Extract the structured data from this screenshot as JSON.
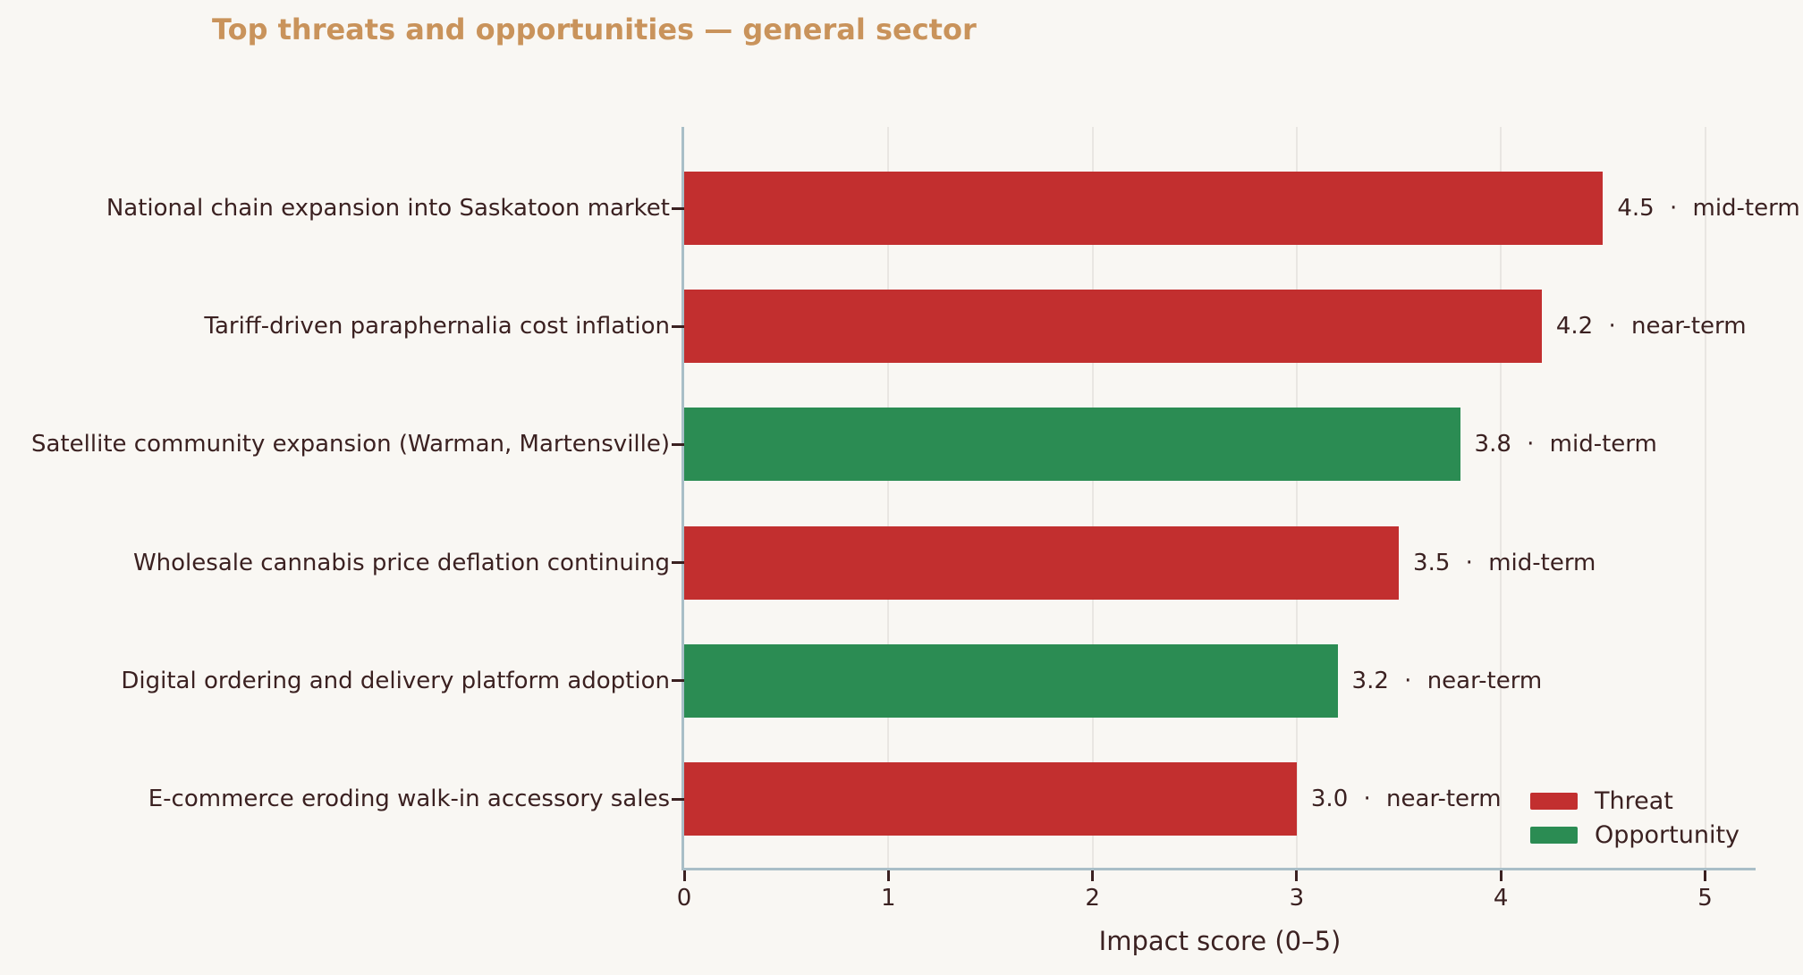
{
  "chart_data": {
    "type": "bar",
    "orientation": "horizontal",
    "title": "Top threats and opportunities — general sector",
    "xlabel": "Impact score (0–5)",
    "xlim": [
      0,
      5.25
    ],
    "xticks": [
      "0",
      "1",
      "2",
      "3",
      "4",
      "5"
    ],
    "grid": "vertical gridlines at integer ticks",
    "categories": [
      "National chain expansion into Saskatoon market",
      "Tariff-driven paraphernalia cost inflation",
      "Satellite community expansion (Warman, Martensville)",
      "Wholesale cannabis price deflation continuing",
      "Digital ordering and delivery platform adoption",
      "E-commerce eroding walk-in accessory sales"
    ],
    "series": [
      {
        "name": "Impact score",
        "values": [
          4.5,
          4.2,
          3.8,
          3.5,
          3.2,
          3.0
        ]
      }
    ],
    "bars": [
      {
        "category": "National chain expansion into Saskatoon market",
        "value": 4.5,
        "horizon": "mid-term",
        "kind": "Threat",
        "annotation": "4.5 · mid-term"
      },
      {
        "category": "Tariff-driven paraphernalia cost inflation",
        "value": 4.2,
        "horizon": "near-term",
        "kind": "Threat",
        "annotation": "4.2 · near-term"
      },
      {
        "category": "Satellite community expansion (Warman, Martensville)",
        "value": 3.8,
        "horizon": "mid-term",
        "kind": "Opportunity",
        "annotation": "3.8 · mid-term"
      },
      {
        "category": "Wholesale cannabis price deflation continuing",
        "value": 3.5,
        "horizon": "mid-term",
        "kind": "Threat",
        "annotation": "3.5 · mid-term"
      },
      {
        "category": "Digital ordering and delivery platform adoption",
        "value": 3.2,
        "horizon": "near-term",
        "kind": "Opportunity",
        "annotation": "3.2 · near-term"
      },
      {
        "category": "E-commerce eroding walk-in accessory sales",
        "value": 3.0,
        "horizon": "near-term",
        "kind": "Threat",
        "annotation": "3.0 · near-term"
      }
    ],
    "legend": {
      "position": "lower right",
      "entries": [
        {
          "label": "Threat",
          "color": "#c22f2f"
        },
        {
          "label": "Opportunity",
          "color": "#2b8c53"
        }
      ]
    }
  },
  "colors": {
    "background": "#f9f7f3",
    "title": "#c9935b",
    "text": "#3b2121",
    "spine": "#a9bec7",
    "grid": "#e9e6e2",
    "threat": "#c22f2f",
    "opportunity": "#2b8c53"
  }
}
